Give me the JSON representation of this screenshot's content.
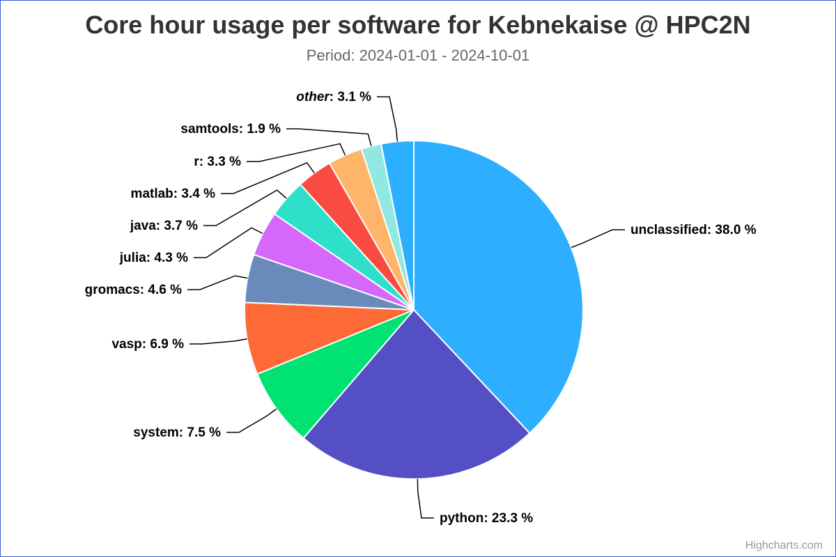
{
  "chart_data": {
    "type": "pie",
    "title": "Core hour usage per software for Kebnekaise @ HPC2N",
    "subtitle": "Period: 2024-01-01 - 2024-10-01",
    "unit": "%",
    "slices": [
      {
        "name": "unclassified",
        "value": 38.0,
        "color": "#2eaeff"
      },
      {
        "name": "python",
        "value": 23.3,
        "color": "#544fc5"
      },
      {
        "name": "system",
        "value": 7.5,
        "color": "#00e272"
      },
      {
        "name": "vasp",
        "value": 6.9,
        "color": "#fe6a35"
      },
      {
        "name": "gromacs",
        "value": 4.6,
        "color": "#6b8abc"
      },
      {
        "name": "julia",
        "value": 4.3,
        "color": "#d568fb"
      },
      {
        "name": "java",
        "value": 3.7,
        "color": "#2ee0ca"
      },
      {
        "name": "matlab",
        "value": 3.4,
        "color": "#fa4b42"
      },
      {
        "name": "r",
        "value": 3.3,
        "color": "#feb56a"
      },
      {
        "name": "samtools",
        "value": 1.9,
        "color": "#91e8e1"
      },
      {
        "name": "other",
        "value": 3.1,
        "color": "#2caffe",
        "italic": true
      }
    ],
    "value_labels": [
      "38.0 %",
      "23.3 %",
      "7.5 %",
      "6.9 %",
      "4.6 %",
      "4.3 %",
      "3.7 %",
      "3.4 %",
      "3.3 %",
      "1.9 %",
      "3.1 %"
    ]
  },
  "credits": "Highcharts.com"
}
